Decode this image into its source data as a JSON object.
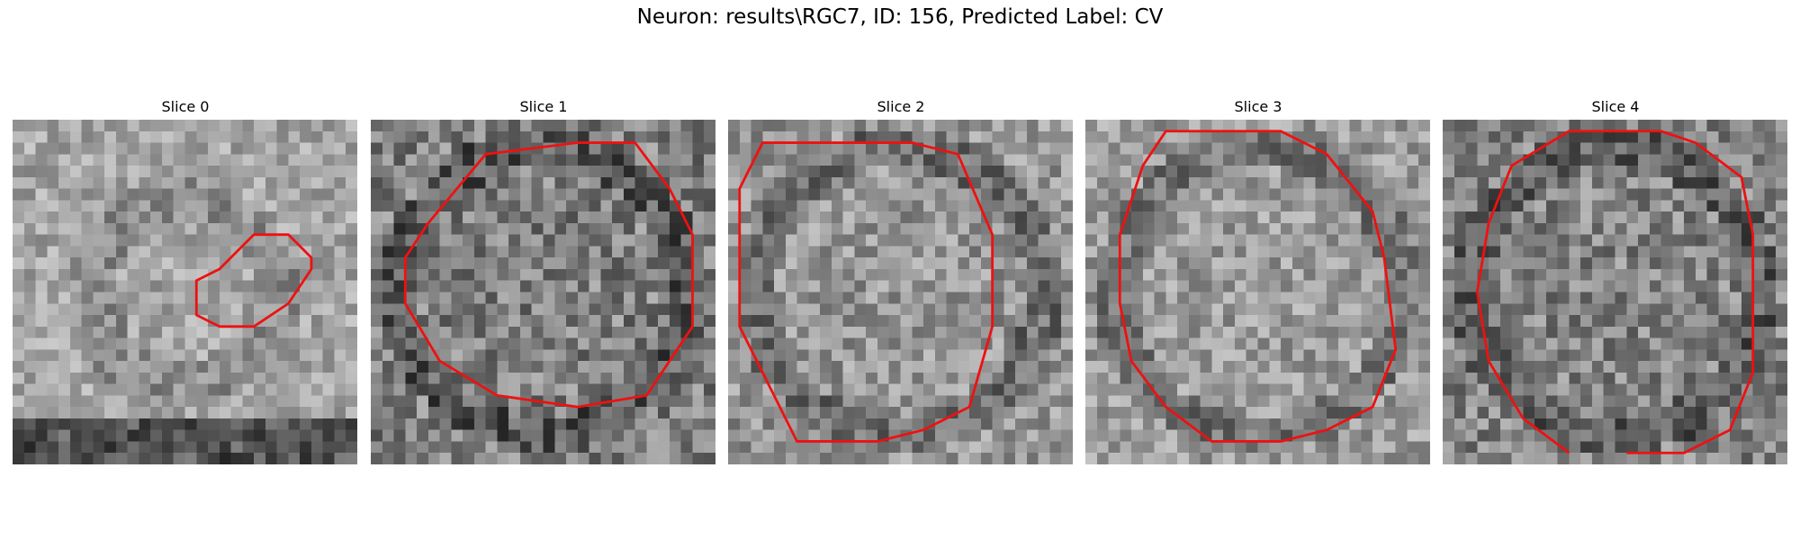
{
  "figure": {
    "title": "Neuron: results\\RGC7, ID: 156, Predicted Label: CV",
    "contour_color": "#ee1111"
  },
  "panels": [
    {
      "title": "Slice 0",
      "seed": 11,
      "base": 165,
      "contrast": 38,
      "roi_polygon": [
        [
          24,
          10
        ],
        [
          21,
          10
        ],
        [
          18,
          13
        ],
        [
          16,
          14
        ],
        [
          16,
          17
        ],
        [
          18,
          18
        ],
        [
          21,
          18
        ],
        [
          24,
          16
        ],
        [
          26,
          13
        ],
        [
          26,
          12
        ]
      ],
      "roi_closed": true
    },
    {
      "title": "Slice 1",
      "seed": 23,
      "base": 128,
      "contrast": 52,
      "roi_polygon": [
        [
          5,
          9
        ],
        [
          10,
          3
        ],
        [
          18,
          2
        ],
        [
          23,
          2
        ],
        [
          26,
          6
        ],
        [
          28,
          10
        ],
        [
          28,
          18
        ],
        [
          24,
          24
        ],
        [
          18,
          25
        ],
        [
          11,
          24
        ],
        [
          6,
          21
        ],
        [
          3,
          16
        ],
        [
          3,
          12
        ]
      ],
      "roi_closed": true
    },
    {
      "title": "Slice 2",
      "seed": 37,
      "base": 150,
      "contrast": 45,
      "roi_polygon": [
        [
          5,
          2
        ],
        [
          16,
          2
        ],
        [
          20,
          3
        ],
        [
          23,
          10
        ],
        [
          23,
          18
        ],
        [
          21,
          25
        ],
        [
          17,
          27
        ],
        [
          13,
          28
        ],
        [
          6,
          28
        ],
        [
          4,
          24
        ],
        [
          1,
          18
        ],
        [
          1,
          6
        ],
        [
          3,
          2
        ]
      ],
      "roi_closed": true
    },
    {
      "title": "Slice 3",
      "seed": 41,
      "base": 155,
      "contrast": 42,
      "roi_polygon": [
        [
          8,
          1
        ],
        [
          17,
          1
        ],
        [
          21,
          3
        ],
        [
          25,
          8
        ],
        [
          26,
          12
        ],
        [
          27,
          20
        ],
        [
          25,
          25
        ],
        [
          21,
          27
        ],
        [
          17,
          28
        ],
        [
          11,
          28
        ],
        [
          7,
          25
        ],
        [
          4,
          21
        ],
        [
          3,
          16
        ],
        [
          3,
          10
        ],
        [
          5,
          4
        ],
        [
          7,
          1
        ]
      ],
      "roi_closed": true
    },
    {
      "title": "Slice 4",
      "seed": 53,
      "base": 132,
      "contrast": 50,
      "roi_polygon": [
        [
          16,
          29
        ],
        [
          21,
          29
        ],
        [
          25,
          27
        ],
        [
          27,
          22
        ],
        [
          27,
          16
        ],
        [
          27,
          10
        ],
        [
          26,
          5
        ],
        [
          22,
          2
        ],
        [
          19,
          1
        ],
        [
          11,
          1
        ],
        [
          6,
          4
        ],
        [
          4,
          9
        ],
        [
          3,
          15
        ],
        [
          4,
          21
        ],
        [
          7,
          26
        ],
        [
          11,
          29
        ]
      ],
      "roi_closed": false
    }
  ]
}
